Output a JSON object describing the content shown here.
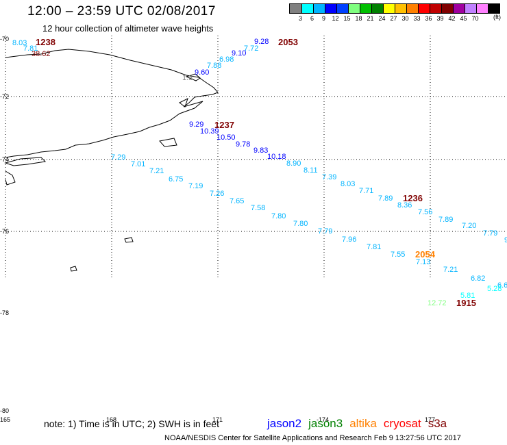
{
  "header": {
    "title": "12:00 – 23:59 UTC 02/08/2017",
    "subtitle": "12 hour collection of altimeter wave heights"
  },
  "legend": {
    "swatches": [
      "#808080",
      "#00ffff",
      "#00b4ff",
      "#0000ff",
      "#0040ff",
      "#80ff80",
      "#00c000",
      "#008000",
      "#ffff00",
      "#ffc000",
      "#ff8000",
      "#ff0000",
      "#c00000",
      "#800000",
      "#a000a0",
      "#c080ff",
      "#ff80ff",
      "#000000"
    ],
    "labels": [
      "3",
      "6",
      "9",
      "12",
      "15",
      "18",
      "21",
      "24",
      "27",
      "30",
      "33",
      "36",
      "39",
      "42",
      "45",
      "70"
    ],
    "unit": "(ft)"
  },
  "axes": {
    "lat_labels": [
      "-70",
      "-72",
      "-74",
      "-76",
      "-78",
      "-80"
    ],
    "lon_labels": [
      "165",
      "168",
      "171",
      "-174",
      "177"
    ]
  },
  "observations": [
    {
      "text": "8.03",
      "color": "#00b4ff"
    },
    {
      "text": "7.81",
      "color": "#00b4ff"
    },
    {
      "text": "38.62",
      "color": "#800000"
    },
    {
      "text": "9.28",
      "color": "#0000ff"
    },
    {
      "text": "7.72",
      "color": "#00b4ff"
    },
    {
      "text": "9.10",
      "color": "#0000ff"
    },
    {
      "text": "6.98",
      "color": "#00b4ff"
    },
    {
      "text": "7.88",
      "color": "#00b4ff"
    },
    {
      "text": "9.60",
      "color": "#0000ff"
    },
    {
      "text": "1.3",
      "color": "#808080"
    },
    {
      "text": "9.29",
      "color": "#0000ff"
    },
    {
      "text": "10.39",
      "color": "#0000ff"
    },
    {
      "text": "10.50",
      "color": "#0000ff"
    },
    {
      "text": "9.78",
      "color": "#0000ff"
    },
    {
      "text": "9.83",
      "color": "#0000ff"
    },
    {
      "text": "10.18",
      "color": "#0000ff"
    },
    {
      "text": "8.90",
      "color": "#00b4ff"
    },
    {
      "text": "8.11",
      "color": "#00b4ff"
    },
    {
      "text": "7.39",
      "color": "#00b4ff"
    },
    {
      "text": "8.03",
      "color": "#00b4ff"
    },
    {
      "text": "7.71",
      "color": "#00b4ff"
    },
    {
      "text": "7.89",
      "color": "#00b4ff"
    },
    {
      "text": "8.36",
      "color": "#00b4ff"
    },
    {
      "text": "7.56",
      "color": "#00b4ff"
    },
    {
      "text": "7.89",
      "color": "#00b4ff"
    },
    {
      "text": "7.20",
      "color": "#00b4ff"
    },
    {
      "text": "7.79",
      "color": "#00b4ff"
    },
    {
      "text": "9",
      "color": "#00b4ff"
    },
    {
      "text": "7.29",
      "color": "#00b4ff"
    },
    {
      "text": "7.01",
      "color": "#00b4ff"
    },
    {
      "text": "7.21",
      "color": "#00b4ff"
    },
    {
      "text": "6.75",
      "color": "#00b4ff"
    },
    {
      "text": "7.19",
      "color": "#00b4ff"
    },
    {
      "text": "7.26",
      "color": "#00b4ff"
    },
    {
      "text": "7.65",
      "color": "#00b4ff"
    },
    {
      "text": "7.58",
      "color": "#00b4ff"
    },
    {
      "text": "7.80",
      "color": "#00b4ff"
    },
    {
      "text": "7.80",
      "color": "#00b4ff"
    },
    {
      "text": "7.79",
      "color": "#00b4ff"
    },
    {
      "text": "7.96",
      "color": "#00b4ff"
    },
    {
      "text": "7.81",
      "color": "#00b4ff"
    },
    {
      "text": "7.55",
      "color": "#00b4ff"
    },
    {
      "text": "7.13",
      "color": "#00b4ff"
    },
    {
      "text": "7.21",
      "color": "#00b4ff"
    },
    {
      "text": "6.82",
      "color": "#00b4ff"
    },
    {
      "text": "6.6",
      "color": "#00b4ff"
    },
    {
      "text": "5.28",
      "color": "#00ffff"
    },
    {
      "text": "5.81",
      "color": "#00ffff"
    },
    {
      "text": "12.72",
      "color": "#80ff80"
    }
  ],
  "pass_times": [
    {
      "text": "1238",
      "color": "#800000"
    },
    {
      "text": "2053",
      "color": "#800000"
    },
    {
      "text": "1237",
      "color": "#800000"
    },
    {
      "text": "1236",
      "color": "#800000"
    },
    {
      "text": "2054",
      "color": "#ff8000"
    },
    {
      "text": "1915",
      "color": "#800000"
    }
  ],
  "footer": {
    "note": "note:  1) Time is in UTC;  2) SWH is in feet",
    "missions": [
      {
        "name": "jason2",
        "color": "#0000ff"
      },
      {
        "name": "jason3",
        "color": "#008000"
      },
      {
        "name": "altika",
        "color": "#ff8000"
      },
      {
        "name": "cryosat",
        "color": "#ff0000"
      },
      {
        "name": "s3a",
        "color": "#800000"
      }
    ],
    "credit": "NOAA/NESDIS Center for Satellite Applications and Research    Feb  9 13:27:56 UTC 2017"
  }
}
